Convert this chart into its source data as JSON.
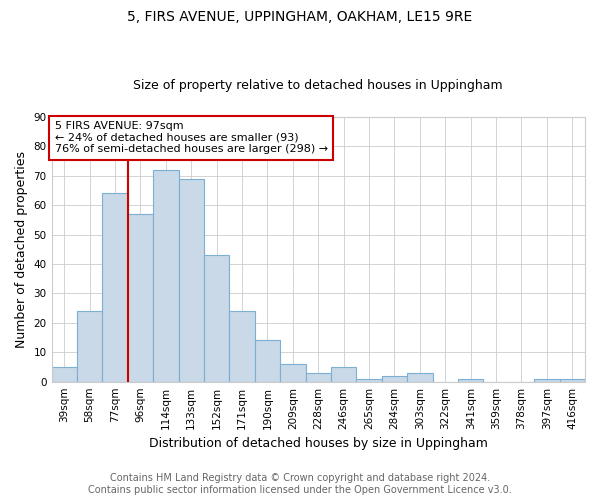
{
  "title1": "5, FIRS AVENUE, UPPINGHAM, OAKHAM, LE15 9RE",
  "title2": "Size of property relative to detached houses in Uppingham",
  "xlabel": "Distribution of detached houses by size in Uppingham",
  "ylabel": "Number of detached properties",
  "categories": [
    "39sqm",
    "58sqm",
    "77sqm",
    "96sqm",
    "114sqm",
    "133sqm",
    "152sqm",
    "171sqm",
    "190sqm",
    "209sqm",
    "228sqm",
    "246sqm",
    "265sqm",
    "284sqm",
    "303sqm",
    "322sqm",
    "341sqm",
    "359sqm",
    "378sqm",
    "397sqm",
    "416sqm"
  ],
  "values": [
    5,
    24,
    64,
    57,
    72,
    69,
    43,
    24,
    14,
    6,
    3,
    5,
    1,
    2,
    3,
    0,
    1,
    0,
    0,
    1,
    1
  ],
  "bar_color": "#c9d9e8",
  "bar_edge_color": "#7bafd4",
  "red_line_index": 3,
  "annotation_line1": "5 FIRS AVENUE: 97sqm",
  "annotation_line2": "← 24% of detached houses are smaller (93)",
  "annotation_line3": "76% of semi-detached houses are larger (298) →",
  "annotation_box_color": "#ffffff",
  "annotation_box_edge": "#cc0000",
  "red_line_color": "#cc0000",
  "ylim": [
    0,
    90
  ],
  "yticks": [
    0,
    10,
    20,
    30,
    40,
    50,
    60,
    70,
    80,
    90
  ],
  "footer1": "Contains HM Land Registry data © Crown copyright and database right 2024.",
  "footer2": "Contains public sector information licensed under the Open Government Licence v3.0.",
  "title_fontsize": 10,
  "subtitle_fontsize": 9,
  "axis_label_fontsize": 9,
  "tick_fontsize": 7.5,
  "annotation_fontsize": 8,
  "footer_fontsize": 7
}
